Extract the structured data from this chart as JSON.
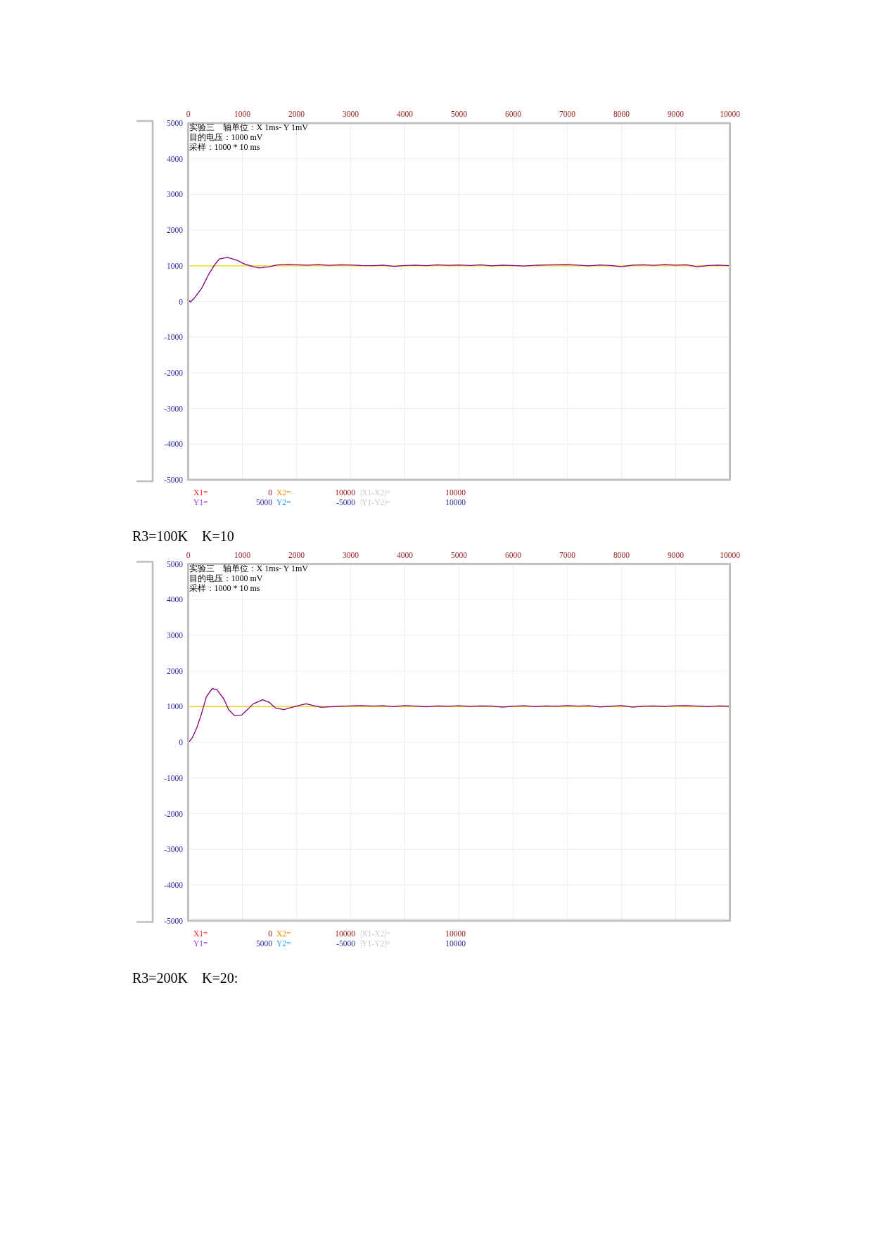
{
  "chart_data": [
    {
      "type": "line",
      "xlim": [
        0,
        10000
      ],
      "xticks": [
        0,
        1000,
        2000,
        3000,
        4000,
        5000,
        6000,
        7000,
        8000,
        9000,
        10000
      ],
      "ylim": [
        -5000,
        5000
      ],
      "yticks": [
        -5000,
        -4000,
        -3000,
        -2000,
        -1000,
        0,
        1000,
        2000,
        3000,
        4000,
        5000
      ],
      "grid": true,
      "series": [
        {
          "color": "#800080",
          "x": [
            11,
            41,
            119,
            249,
            379,
            487,
            574,
            726,
            899,
            1028,
            1202,
            1310,
            1505,
            1635,
            1851,
            2000,
            2200,
            2400,
            2600,
            2800,
            3000,
            3200,
            3400,
            3600,
            3800,
            4000,
            4200,
            4400,
            4600,
            4800,
            5000,
            5200,
            5400,
            5600,
            5800,
            6000,
            6200,
            6400,
            6600,
            6800,
            7000,
            7200,
            7400,
            7600,
            7800,
            8000,
            8200,
            8400,
            8600,
            8800,
            9000,
            9200,
            9400,
            9600,
            9800,
            10000
          ],
          "values": [
            38,
            -14,
            104,
            367,
            761,
            1024,
            1189,
            1234,
            1156,
            1057,
            972,
            939,
            972,
            1024,
            1037,
            1030,
            1020,
            1035,
            1015,
            1030,
            1025,
            1010,
            1005,
            1020,
            985,
            1010,
            1020,
            1005,
            1030,
            1015,
            1025,
            1010,
            1030,
            1000,
            1020,
            1010,
            995,
            1015,
            1025,
            1030,
            1035,
            1020,
            1000,
            1025,
            1010,
            975,
            1020,
            1030,
            1015,
            1035,
            1020,
            1030,
            975,
            1010,
            1020,
            1005
          ]
        }
      ],
      "ref_lines": [
        {
          "axis": "y",
          "value": 1000,
          "color": "#ffcc00"
        }
      ],
      "annotations": [
        "实验三　轴单位：X 1ms- Y 1mV",
        "目的电压：1000 mV",
        "采样：1000 * 10 ms",
        "X1=",
        "0",
        "X2=",
        "10000",
        "|X1-X2|=",
        "10000",
        "Y1=",
        "5000",
        "Y2=",
        "-5000",
        "|Y1-Y2|=",
        "10000"
      ]
    },
    {
      "type": "line",
      "title": "R3=100K　K=10",
      "xlim": [
        0,
        10000
      ],
      "xticks": [
        0,
        1000,
        2000,
        3000,
        4000,
        5000,
        6000,
        7000,
        8000,
        9000,
        10000
      ],
      "ylim": [
        -5000,
        5000
      ],
      "yticks": [
        -5000,
        -4000,
        -3000,
        -2000,
        -1000,
        0,
        1000,
        2000,
        3000,
        4000,
        5000
      ],
      "grid": true,
      "series": [
        {
          "color": "#800080",
          "x": [
            11,
            76,
            163,
            249,
            336,
            444,
            531,
            660,
            747,
            856,
            986,
            1115,
            1202,
            1375,
            1505,
            1613,
            1765,
            1917,
            2025,
            2177,
            2328,
            2458,
            2675,
            2800,
            3000,
            3200,
            3400,
            3600,
            3800,
            4000,
            4200,
            4400,
            4600,
            4800,
            5000,
            5200,
            5400,
            5600,
            5800,
            6000,
            6200,
            6400,
            6600,
            6800,
            7000,
            7200,
            7400,
            7600,
            7800,
            8000,
            8200,
            8400,
            8600,
            8800,
            9000,
            9200,
            9400,
            9600,
            9800,
            10000
          ],
          "values": [
            0,
            126,
            422,
            816,
            1276,
            1506,
            1473,
            1210,
            915,
            749,
            763,
            947,
            1079,
            1191,
            1112,
            960,
            915,
            980,
            1025,
            1079,
            1025,
            980,
            1000,
            1010,
            1020,
            1030,
            1015,
            1025,
            1000,
            1030,
            1015,
            995,
            1020,
            1010,
            1025,
            1005,
            1020,
            1015,
            985,
            1010,
            1025,
            1000,
            1020,
            1010,
            1030,
            1015,
            1025,
            990,
            1010,
            1030,
            985,
            1010,
            1020,
            1005,
            1025,
            1030,
            1015,
            1000,
            1020,
            1010
          ]
        }
      ],
      "ref_lines": [
        {
          "axis": "y",
          "value": 1000,
          "color": "#ffcc00"
        }
      ],
      "annotations": [
        "实验三　轴单位：X 1ms- Y 1mV",
        "目的电压：1000 mV",
        "采样：1000 * 10 ms",
        "X1=",
        "0",
        "X2=",
        "10000",
        "|X1-X2|=",
        "10000",
        "Y1=",
        "5000",
        "Y2=",
        "-5000",
        "|Y1-Y2|=",
        "10000",
        "R3=200K　K=20:"
      ]
    }
  ]
}
